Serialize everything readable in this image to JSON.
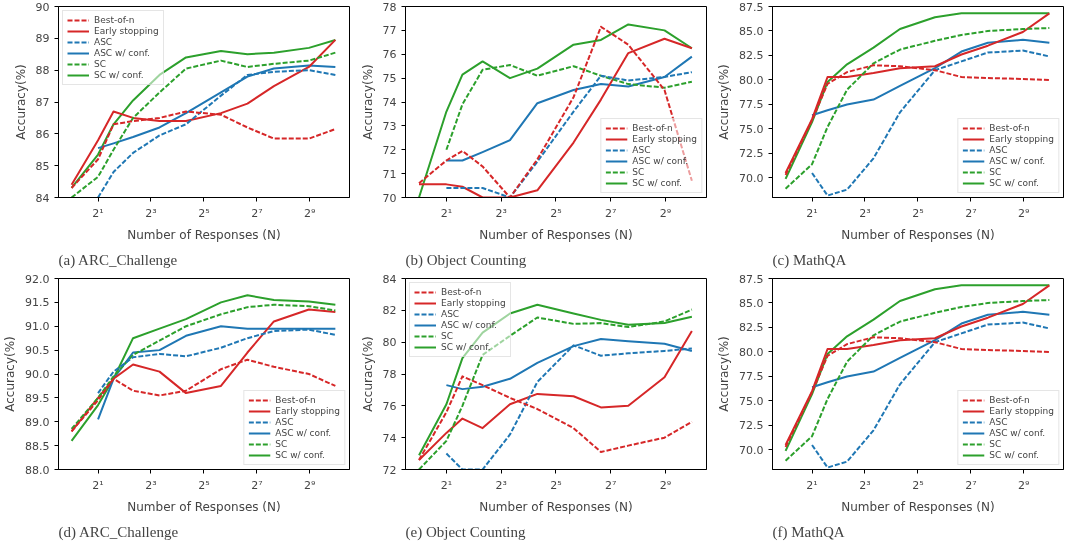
{
  "chart_data": [
    {
      "type": "line",
      "annotations": [
        "(a) ARC_Challenge"
      ],
      "xlabel": "Number of Responses (N)",
      "ylabel": "Accuracy(%)",
      "log": "x",
      "x": [
        1,
        2,
        3,
        5,
        10,
        20,
        50,
        100,
        200,
        500,
        1000
      ],
      "xlim": [
        0.71,
        1448
      ],
      "xticks": [
        {
          "value": 2,
          "label": "2¹"
        },
        {
          "value": 8,
          "label": "2³"
        },
        {
          "value": 32,
          "label": "2⁵"
        },
        {
          "value": 128,
          "label": "2⁷"
        },
        {
          "value": 512,
          "label": "2⁹"
        }
      ],
      "ylim": [
        84,
        90
      ],
      "yticks": [
        84,
        85,
        86,
        87,
        88,
        89,
        90
      ],
      "legend": "top left",
      "grid": false,
      "series": [
        {
          "name": "Best-of-n",
          "color": "#d62728",
          "line_style": "dashed",
          "values": [
            84.3,
            85.2,
            86.3,
            86.4,
            86.5,
            86.7,
            86.6,
            86.2,
            85.85,
            85.85,
            86.15
          ]
        },
        {
          "name": "Early stopping",
          "color": "#d62728",
          "line_style": "solid",
          "values": [
            84.4,
            85.8,
            86.7,
            86.5,
            86.4,
            86.4,
            86.65,
            86.95,
            87.5,
            88.1,
            88.95
          ]
        },
        {
          "name": "ASC",
          "color": "#1f77b4",
          "line_style": "dashed",
          "values": [
            null,
            84.0,
            84.8,
            85.4,
            85.95,
            86.3,
            87.2,
            87.85,
            87.95,
            88.0,
            87.85
          ]
        },
        {
          "name": "ASC w/ conf.",
          "color": "#1f77b4",
          "line_style": "solid",
          "values": [
            null,
            85.55,
            85.7,
            85.9,
            86.2,
            86.65,
            87.3,
            87.8,
            88.05,
            88.15,
            88.1
          ]
        },
        {
          "name": "SC",
          "color": "#2ca02c",
          "line_style": "dashed",
          "values": [
            84.0,
            84.65,
            85.5,
            86.5,
            87.3,
            88.05,
            88.3,
            88.1,
            88.2,
            88.3,
            88.55
          ]
        },
        {
          "name": "SC w/ conf.",
          "color": "#2ca02c",
          "line_style": "solid",
          "values": [
            84.3,
            85.35,
            86.3,
            87.05,
            87.85,
            88.4,
            88.6,
            88.5,
            88.55,
            88.7,
            88.95
          ]
        }
      ]
    },
    {
      "type": "line",
      "annotations": [
        "(b) Object Counting"
      ],
      "xlabel": "Number of Responses (N)",
      "ylabel": "Accuracy(%)",
      "log": "x",
      "x": [
        1,
        2,
        3,
        5,
        10,
        20,
        50,
        100,
        200,
        500,
        1000
      ],
      "xlim": [
        0.71,
        1448
      ],
      "xticks": [
        {
          "value": 2,
          "label": "2¹"
        },
        {
          "value": 8,
          "label": "2³"
        },
        {
          "value": 32,
          "label": "2⁵"
        },
        {
          "value": 128,
          "label": "2⁷"
        },
        {
          "value": 512,
          "label": "2⁹"
        }
      ],
      "ylim": [
        70,
        78
      ],
      "yticks": [
        70,
        71,
        72,
        73,
        74,
        75,
        76,
        77,
        78
      ],
      "legend": "bottom right",
      "grid": false,
      "series": [
        {
          "name": "Best-of-n",
          "color": "#d62728",
          "line_style": "dashed",
          "values": [
            70.6,
            71.55,
            71.95,
            71.3,
            70.0,
            71.6,
            74.2,
            77.15,
            76.4,
            74.5,
            70.7
          ]
        },
        {
          "name": "Early stopping",
          "color": "#d62728",
          "line_style": "solid",
          "values": [
            70.55,
            70.55,
            70.45,
            70.0,
            70.0,
            70.3,
            72.3,
            74.1,
            76.05,
            76.65,
            76.25
          ]
        },
        {
          "name": "ASC",
          "color": "#1f77b4",
          "line_style": "dashed",
          "values": [
            null,
            70.4,
            70.4,
            70.4,
            70.0,
            71.5,
            73.6,
            75.1,
            74.9,
            75.05,
            75.25
          ]
        },
        {
          "name": "ASC w/ conf.",
          "color": "#1f77b4",
          "line_style": "solid",
          "values": [
            null,
            71.55,
            71.55,
            71.9,
            72.4,
            73.95,
            74.5,
            74.75,
            74.65,
            75.05,
            75.9
          ]
        },
        {
          "name": "SC",
          "color": "#2ca02c",
          "line_style": "dashed",
          "values": [
            null,
            72.0,
            73.9,
            75.35,
            75.55,
            75.1,
            75.5,
            75.1,
            74.75,
            74.6,
            74.85
          ]
        },
        {
          "name": "SC w/ conf.",
          "color": "#2ca02c",
          "line_style": "solid",
          "values": [
            70.0,
            73.6,
            75.15,
            75.7,
            75.0,
            75.4,
            76.4,
            76.6,
            77.25,
            77.0,
            76.25
          ]
        }
      ]
    },
    {
      "type": "line",
      "annotations": [
        "(c) MathQA"
      ],
      "xlabel": "Number of Responses (N)",
      "ylabel": "Accuracy(%)",
      "log": "x",
      "x": [
        1,
        2,
        3,
        5,
        10,
        20,
        50,
        100,
        200,
        500,
        1000
      ],
      "xlim": [
        0.71,
        1448
      ],
      "xticks": [
        {
          "value": 2,
          "label": "2¹"
        },
        {
          "value": 8,
          "label": "2³"
        },
        {
          "value": 32,
          "label": "2⁵"
        },
        {
          "value": 128,
          "label": "2⁷"
        },
        {
          "value": 512,
          "label": "2⁹"
        }
      ],
      "ylim": [
        68,
        87.5
      ],
      "yticks": [
        {
          "value": 70,
          "label": "70.0"
        },
        72.5,
        {
          "value": 75,
          "label": "75.0"
        },
        77.5,
        {
          "value": 80,
          "label": "80.0"
        },
        82.5,
        {
          "value": 85,
          "label": "85.0"
        },
        87.5
      ],
      "legend": "bottom right",
      "grid": false,
      "series": [
        {
          "name": "Best-of-n",
          "color": "#d62728",
          "line_style": "dashed",
          "values": [
            70.3,
            75.9,
            79.6,
            80.8,
            81.5,
            81.4,
            81.0,
            80.3,
            80.2,
            80.1,
            80.0
          ]
        },
        {
          "name": "Early stopping",
          "color": "#d62728",
          "line_style": "solid",
          "values": [
            70.5,
            76.0,
            80.3,
            80.3,
            80.7,
            81.2,
            81.4,
            82.6,
            83.5,
            84.9,
            86.8
          ]
        },
        {
          "name": "ASC",
          "color": "#1f77b4",
          "line_style": "dashed",
          "values": [
            null,
            70.5,
            68.2,
            68.8,
            72.0,
            76.7,
            81.0,
            81.9,
            82.8,
            83.0,
            82.4
          ]
        },
        {
          "name": "ASC w/ conf.",
          "color": "#1f77b4",
          "line_style": "solid",
          "values": [
            null,
            76.4,
            76.9,
            77.5,
            78.0,
            79.4,
            81.2,
            82.9,
            83.8,
            84.1,
            83.8
          ]
        },
        {
          "name": "SC",
          "color": "#2ca02c",
          "line_style": "dashed",
          "values": [
            68.9,
            71.4,
            75.2,
            79.0,
            81.7,
            83.1,
            84.0,
            84.6,
            85.0,
            85.2,
            85.3
          ]
        },
        {
          "name": "SC w/ conf.",
          "color": "#2ca02c",
          "line_style": "solid",
          "values": [
            69.9,
            75.7,
            79.8,
            81.6,
            83.3,
            85.2,
            86.4,
            86.8,
            86.8,
            86.8,
            86.8
          ]
        }
      ]
    },
    {
      "type": "line",
      "annotations": [
        "(d) ARC_Challenge"
      ],
      "xlabel": "Number of Responses (N)",
      "ylabel": "Accuracy(%)",
      "log": "x",
      "x": [
        1,
        2,
        3,
        5,
        10,
        20,
        50,
        100,
        200,
        500,
        1000
      ],
      "xlim": [
        0.71,
        1448
      ],
      "xticks": [
        {
          "value": 2,
          "label": "2¹"
        },
        {
          "value": 8,
          "label": "2³"
        },
        {
          "value": 32,
          "label": "2⁵"
        },
        {
          "value": 128,
          "label": "2⁷"
        },
        {
          "value": 512,
          "label": "2⁹"
        }
      ],
      "ylim": [
        88,
        92
      ],
      "yticks": [
        {
          "value": 88,
          "label": "88.0"
        },
        88.5,
        {
          "value": 89,
          "label": "89.0"
        },
        89.5,
        {
          "value": 90,
          "label": "90.0"
        },
        90.5,
        {
          "value": 91,
          "label": "91.0"
        },
        91.5,
        {
          "value": 92,
          "label": "92.0"
        }
      ],
      "legend": "bottom right",
      "grid": false,
      "series": [
        {
          "name": "Best-of-n",
          "color": "#d62728",
          "line_style": "dashed",
          "values": [
            88.8,
            89.45,
            89.9,
            89.65,
            89.55,
            89.65,
            90.1,
            90.3,
            90.15,
            90.0,
            89.75
          ]
        },
        {
          "name": "Early stopping",
          "color": "#d62728",
          "line_style": "solid",
          "values": [
            88.8,
            89.5,
            89.9,
            90.2,
            90.05,
            89.6,
            89.75,
            90.45,
            91.1,
            91.35,
            91.3
          ]
        },
        {
          "name": "ASC",
          "color": "#1f77b4",
          "line_style": "dashed",
          "values": [
            null,
            89.6,
            90.05,
            90.35,
            90.42,
            90.37,
            90.55,
            90.75,
            90.9,
            90.93,
            90.82
          ]
        },
        {
          "name": "ASC w/ conf.",
          "color": "#1f77b4",
          "line_style": "solid",
          "values": [
            null,
            89.05,
            89.9,
            90.45,
            90.5,
            90.8,
            91.0,
            90.95,
            90.95,
            90.95,
            90.95
          ]
        },
        {
          "name": "SC",
          "color": "#2ca02c",
          "line_style": "dashed",
          "values": [
            88.85,
            89.5,
            89.95,
            90.4,
            90.7,
            91.0,
            91.25,
            91.4,
            91.45,
            91.42,
            91.33
          ]
        },
        {
          "name": "SC w/ conf.",
          "color": "#2ca02c",
          "line_style": "solid",
          "values": [
            88.6,
            89.35,
            89.9,
            90.75,
            90.95,
            91.15,
            91.5,
            91.65,
            91.55,
            91.52,
            91.45
          ]
        }
      ]
    },
    {
      "type": "line",
      "annotations": [
        "(e) Object Counting"
      ],
      "xlabel": "Number of Responses (N)",
      "ylabel": "Accuracy(%)",
      "log": "x",
      "x": [
        1,
        2,
        3,
        5,
        10,
        20,
        50,
        100,
        200,
        500,
        1000
      ],
      "xlim": [
        0.71,
        1448
      ],
      "xticks": [
        {
          "value": 2,
          "label": "2¹"
        },
        {
          "value": 8,
          "label": "2³"
        },
        {
          "value": 32,
          "label": "2⁵"
        },
        {
          "value": 128,
          "label": "2⁷"
        },
        {
          "value": 512,
          "label": "2⁹"
        }
      ],
      "ylim": [
        72,
        84
      ],
      "yticks": [
        72,
        74,
        76,
        78,
        80,
        82,
        84
      ],
      "legend": "top left",
      "grid": false,
      "series": [
        {
          "name": "Best-of-n",
          "color": "#d62728",
          "line_style": "dashed",
          "values": [
            72.6,
            75.6,
            77.85,
            77.3,
            76.5,
            75.8,
            74.6,
            73.1,
            73.5,
            74.0,
            75.0
          ]
        },
        {
          "name": "Early stopping",
          "color": "#d62728",
          "line_style": "solid",
          "values": [
            72.6,
            74.3,
            75.2,
            74.6,
            76.1,
            76.75,
            76.6,
            75.9,
            76.0,
            77.8,
            80.7
          ]
        },
        {
          "name": "ASC",
          "color": "#1f77b4",
          "line_style": "dashed",
          "values": [
            null,
            73.0,
            72.0,
            72.0,
            74.2,
            77.5,
            79.8,
            79.15,
            79.3,
            79.45,
            79.6
          ]
        },
        {
          "name": "ASC w/ conf.",
          "color": "#1f77b4",
          "line_style": "solid",
          "values": [
            null,
            77.3,
            77.05,
            77.2,
            77.7,
            78.7,
            79.75,
            80.2,
            80.05,
            79.9,
            79.45
          ]
        },
        {
          "name": "SC",
          "color": "#2ca02c",
          "line_style": "dashed",
          "values": [
            72.0,
            73.8,
            76.0,
            79.2,
            80.4,
            81.55,
            81.15,
            81.2,
            80.95,
            81.3,
            82.05
          ]
        },
        {
          "name": "SC w/ conf.",
          "color": "#2ca02c",
          "line_style": "solid",
          "values": [
            72.9,
            76.1,
            79.0,
            80.6,
            81.8,
            82.35,
            81.8,
            81.4,
            81.1,
            81.2,
            81.6
          ]
        }
      ]
    },
    {
      "type": "line",
      "annotations": [
        "(f) MathQA"
      ],
      "xlabel": "Number of Responses (N)",
      "ylabel": "Accuracy(%)",
      "log": "x",
      "x": [
        1,
        2,
        3,
        5,
        10,
        20,
        50,
        100,
        200,
        500,
        1000
      ],
      "xlim": [
        0.71,
        1448
      ],
      "xticks": [
        {
          "value": 2,
          "label": "2¹"
        },
        {
          "value": 8,
          "label": "2³"
        },
        {
          "value": 32,
          "label": "2⁵"
        },
        {
          "value": 128,
          "label": "2⁷"
        },
        {
          "value": 512,
          "label": "2⁹"
        }
      ],
      "ylim": [
        68,
        87.5
      ],
      "yticks": [
        {
          "value": 70,
          "label": "70.0"
        },
        72.5,
        {
          "value": 75,
          "label": "75.0"
        },
        77.5,
        {
          "value": 80,
          "label": "80.0"
        },
        82.5,
        {
          "value": 85,
          "label": "85.0"
        },
        87.5
      ],
      "legend": "bottom right",
      "grid": false,
      "series": [
        {
          "name": "Best-of-n",
          "color": "#d62728",
          "line_style": "dashed",
          "values": [
            70.3,
            75.9,
            79.6,
            80.8,
            81.5,
            81.4,
            81.0,
            80.3,
            80.2,
            80.1,
            80.0
          ]
        },
        {
          "name": "Early stopping",
          "color": "#d62728",
          "line_style": "solid",
          "values": [
            70.5,
            76.0,
            80.3,
            80.3,
            80.7,
            81.2,
            81.4,
            82.6,
            83.5,
            84.9,
            86.8
          ]
        },
        {
          "name": "ASC",
          "color": "#1f77b4",
          "line_style": "dashed",
          "values": [
            null,
            70.5,
            68.2,
            68.8,
            72.0,
            76.7,
            81.0,
            81.9,
            82.8,
            83.0,
            82.4
          ]
        },
        {
          "name": "ASC w/ conf.",
          "color": "#1f77b4",
          "line_style": "solid",
          "values": [
            null,
            76.4,
            76.9,
            77.5,
            78.0,
            79.4,
            81.2,
            82.9,
            83.8,
            84.1,
            83.8
          ]
        },
        {
          "name": "SC",
          "color": "#2ca02c",
          "line_style": "dashed",
          "values": [
            68.9,
            71.4,
            75.2,
            79.0,
            81.7,
            83.1,
            84.0,
            84.6,
            85.0,
            85.2,
            85.3
          ]
        },
        {
          "name": "SC w/ conf.",
          "color": "#2ca02c",
          "line_style": "solid",
          "values": [
            69.9,
            75.7,
            79.8,
            81.6,
            83.3,
            85.2,
            86.4,
            86.8,
            86.8,
            86.8,
            86.8
          ]
        }
      ]
    }
  ]
}
